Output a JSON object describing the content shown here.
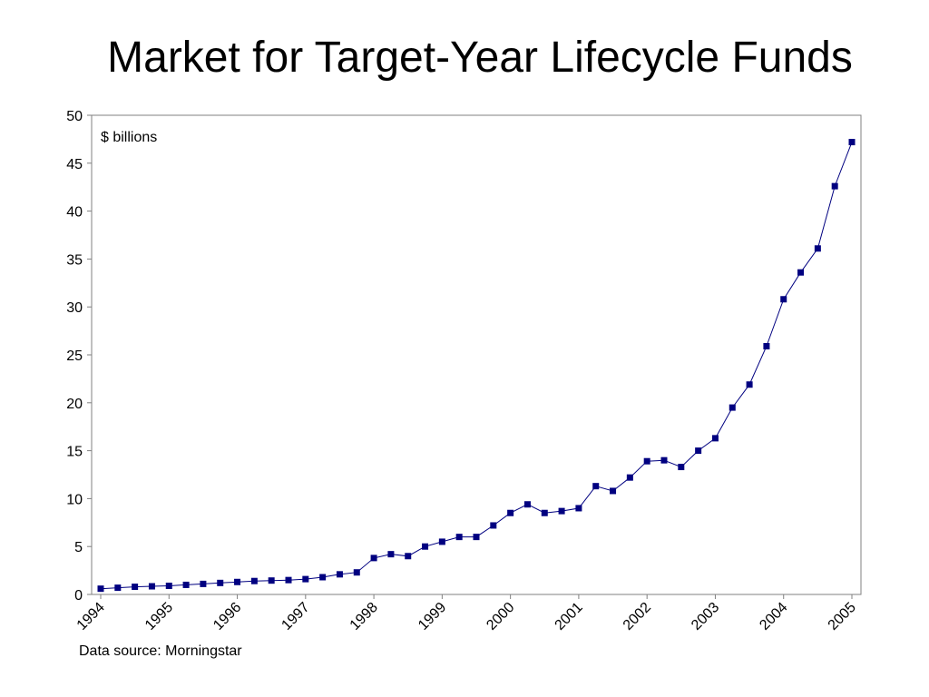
{
  "slide": {
    "title": "Market for Target-Year Lifecycle Funds",
    "source_note": "Data source: Morningstar"
  },
  "chart_data": {
    "type": "line",
    "title": "Market for Target-Year Lifecycle Funds",
    "ylabel": "$ billions",
    "xlabel": "",
    "ylim": [
      0,
      50
    ],
    "yticks": [
      0,
      5,
      10,
      15,
      20,
      25,
      30,
      35,
      40,
      45,
      50
    ],
    "xlim": [
      1994,
      2005
    ],
    "xticks": [
      "1994",
      "1995",
      "1996",
      "1997",
      "1998",
      "1999",
      "2000",
      "2001",
      "2002",
      "2003",
      "2004",
      "2005"
    ],
    "grid": false,
    "legend": "none",
    "marker": "square",
    "colors": {
      "series": "#000080",
      "axis": "#808080",
      "text": "#000000"
    },
    "series": [
      {
        "x": [
          1994.0,
          1994.25,
          1994.5,
          1994.75,
          1995.0,
          1995.25,
          1995.5,
          1995.75,
          1996.0,
          1996.25,
          1996.5,
          1996.75,
          1997.0,
          1997.25,
          1997.5,
          1997.75,
          1998.0,
          1998.25,
          1998.5,
          1998.75,
          1999.0,
          1999.25,
          1999.5,
          1999.75,
          2000.0,
          2000.25,
          2000.5,
          2000.75,
          2001.0,
          2001.25,
          2001.5,
          2001.75,
          2002.0,
          2002.25,
          2002.5,
          2002.75,
          2003.0,
          2003.25,
          2003.5,
          2003.75,
          2004.0,
          2004.25,
          2004.5,
          2004.75,
          2005.0
        ],
        "values": [
          0.6,
          0.7,
          0.8,
          0.85,
          0.9,
          1.0,
          1.1,
          1.2,
          1.3,
          1.4,
          1.45,
          1.5,
          1.6,
          1.8,
          2.1,
          2.3,
          3.8,
          4.2,
          4.0,
          5.0,
          5.5,
          6.0,
          6.0,
          7.2,
          8.5,
          9.4,
          8.5,
          8.7,
          9.0,
          11.3,
          10.8,
          12.2,
          13.9,
          14.0,
          13.3,
          15.0,
          16.3,
          19.5,
          21.9,
          25.9,
          30.8,
          33.6,
          36.1,
          42.6,
          47.2
        ]
      }
    ]
  }
}
